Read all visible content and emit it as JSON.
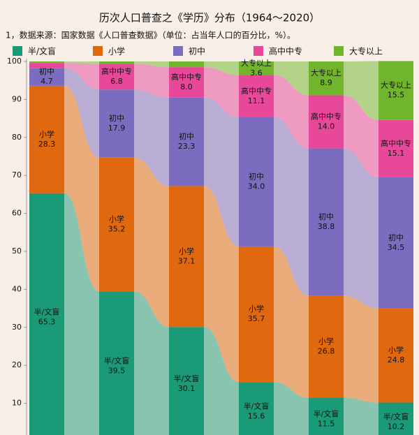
{
  "chart_data": {
    "type": "stacked-bar",
    "title": "历次人口普查之《学历》分布（1964～2020）",
    "subtitle": "1，数据来源：国家数据《人口普查数据》（单位：占当年人口的百分比，%）。",
    "categories": [
      null,
      null,
      null,
      null,
      null,
      null
    ],
    "series": [
      {
        "name": "半/文盲",
        "color": "#1b9a78",
        "values": [
          65.3,
          39.5,
          30.1,
          15.6,
          11.5,
          10.2
        ],
        "value_labels": [
          "65.3",
          "39.5",
          "30.1",
          "15.6",
          "11.5",
          "10.2"
        ]
      },
      {
        "name": "小学",
        "color": "#e0690f",
        "values": [
          28.3,
          35.2,
          37.1,
          35.7,
          26.8,
          24.8
        ],
        "value_labels": [
          "28.3",
          "35.2",
          "37.1",
          "35.7",
          "26.8",
          "24.8"
        ]
      },
      {
        "name": "初中",
        "color": "#7b6cc0",
        "values": [
          4.7,
          17.9,
          23.3,
          34.0,
          38.8,
          34.5
        ],
        "value_labels": [
          "4.7",
          "17.9",
          "23.3",
          "34.0",
          "38.8",
          "34.5"
        ]
      },
      {
        "name": "高中中专",
        "color": "#e8489a",
        "values": [
          1.3,
          6.8,
          8.0,
          11.1,
          14.0,
          15.1
        ],
        "value_labels": [
          null,
          "6.8",
          "8.0",
          "11.1",
          "14.0",
          "15.1"
        ]
      },
      {
        "name": "大专以上",
        "color": "#70b52b",
        "values": [
          0.4,
          0.6,
          1.5,
          3.6,
          8.9,
          15.5
        ],
        "value_labels": [
          null,
          null,
          null,
          "3.6",
          "8.9",
          "15.5"
        ]
      }
    ],
    "ylim": [
      0,
      100
    ],
    "yticks": [
      10,
      20,
      30,
      40,
      50,
      60,
      70,
      80,
      90,
      100
    ],
    "grid": false
  }
}
